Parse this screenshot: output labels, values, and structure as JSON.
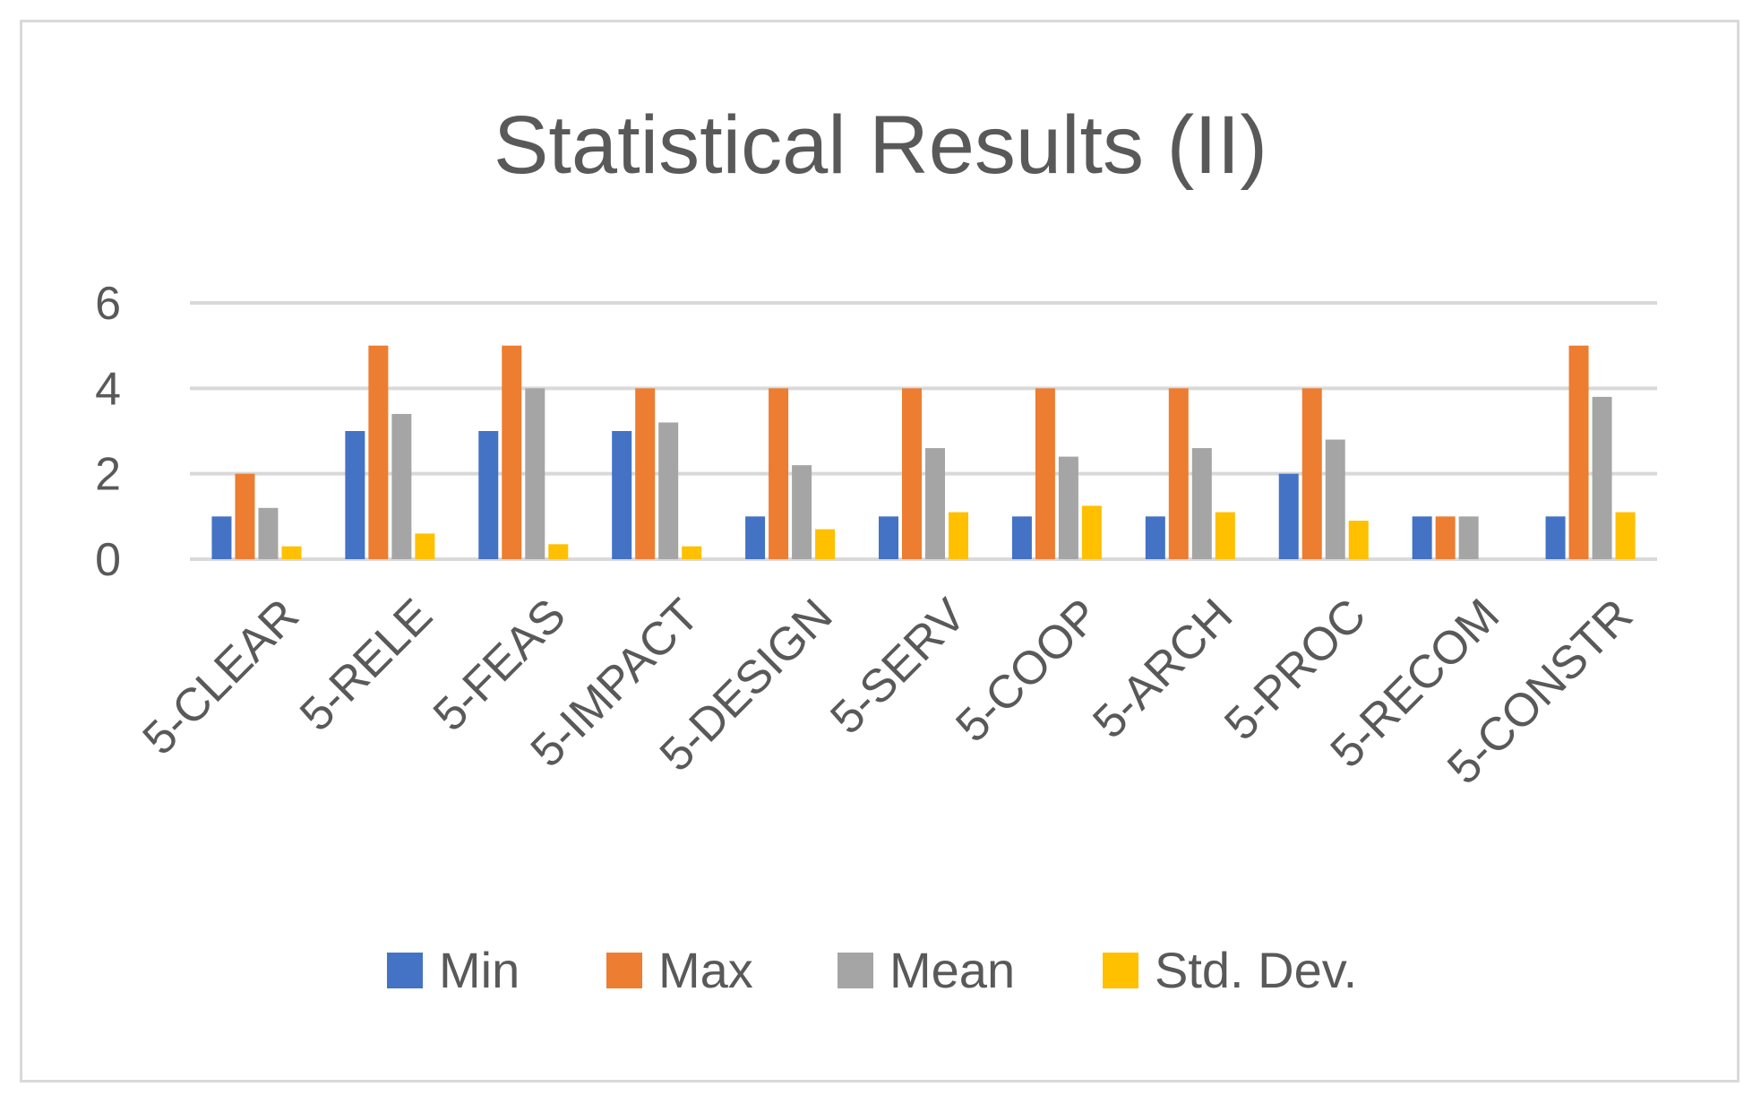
{
  "chart_data": {
    "type": "bar",
    "title": "Statistical Results (II)",
    "xlabel": "",
    "ylabel": "",
    "ylim": [
      0,
      6
    ],
    "yticks": [
      0,
      2,
      4,
      6
    ],
    "grid": true,
    "legend_position": "bottom",
    "categories": [
      "5-CLEAR",
      "5-RELE",
      "5-FEAS",
      "5-IMPACT",
      "5-DESIGN",
      "5-SERV",
      "5-COOP",
      "5-ARCH",
      "5-PROC",
      "5-RECOM",
      "5-CONSTR"
    ],
    "series": [
      {
        "name": "Min",
        "color": "#4472c4",
        "values": [
          1,
          3,
          3,
          3,
          1,
          1,
          1,
          1,
          2,
          1,
          1
        ]
      },
      {
        "name": "Max",
        "color": "#ed7d31",
        "values": [
          2,
          5,
          5,
          4,
          4,
          4,
          4,
          4,
          4,
          1,
          5
        ]
      },
      {
        "name": "Mean",
        "color": "#a5a5a5",
        "values": [
          1.2,
          3.4,
          4.0,
          3.2,
          2.2,
          2.6,
          2.4,
          2.6,
          2.8,
          1.0,
          3.8
        ]
      },
      {
        "name": "Std. Dev.",
        "color": "#ffc000",
        "values": [
          0.3,
          0.6,
          0.35,
          0.3,
          0.7,
          1.1,
          1.25,
          1.1,
          0.9,
          0,
          1.1
        ]
      }
    ]
  }
}
